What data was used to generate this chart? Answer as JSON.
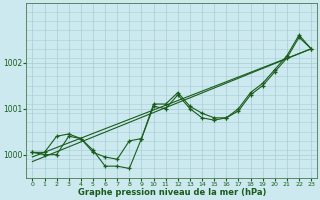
{
  "xlabel": "Graphe pression niveau de la mer (hPa)",
  "bg_color": "#cce9f0",
  "line_color": "#1a5c1a",
  "grid_color": "#a8cdd4",
  "xlim": [
    -0.5,
    23.5
  ],
  "ylim": [
    999.5,
    1003.3
  ],
  "yticks": [
    1000,
    1001,
    1002
  ],
  "xticks": [
    0,
    1,
    2,
    3,
    4,
    5,
    6,
    7,
    8,
    9,
    10,
    11,
    12,
    13,
    14,
    15,
    16,
    17,
    18,
    19,
    20,
    21,
    22,
    23
  ],
  "data1_x": [
    0,
    1,
    2,
    3,
    4,
    5,
    6,
    7,
    8,
    9,
    10,
    11,
    12,
    13,
    14,
    15,
    16,
    17,
    18,
    19,
    20,
    21,
    22,
    23
  ],
  "data1_y": [
    1000.05,
    1000.05,
    1000.4,
    1000.45,
    1000.35,
    1000.05,
    999.95,
    999.9,
    1000.3,
    1000.35,
    1001.1,
    1001.1,
    1001.35,
    1001.05,
    1000.9,
    1000.8,
    1000.8,
    1001.0,
    1001.35,
    1001.55,
    1001.85,
    1002.15,
    1002.6,
    1002.3
  ],
  "data2_x": [
    0,
    1,
    2,
    3,
    4,
    5,
    6,
    7,
    8,
    9,
    10,
    11,
    12,
    13,
    14,
    15,
    16,
    17,
    18,
    19,
    20,
    21,
    22,
    23
  ],
  "data2_y": [
    1000.05,
    1000.0,
    1000.0,
    1000.4,
    1000.35,
    1000.1,
    999.75,
    999.75,
    999.7,
    1000.35,
    1001.05,
    1001.0,
    1001.3,
    1001.0,
    1000.8,
    1000.75,
    1000.8,
    1000.95,
    1001.3,
    1001.5,
    1001.8,
    1002.1,
    1002.55,
    1002.3
  ],
  "trend1_x": [
    0,
    23
  ],
  "trend1_y": [
    999.95,
    1002.3
  ],
  "trend2_x": [
    0,
    23
  ],
  "trend2_y": [
    999.85,
    1002.3
  ]
}
